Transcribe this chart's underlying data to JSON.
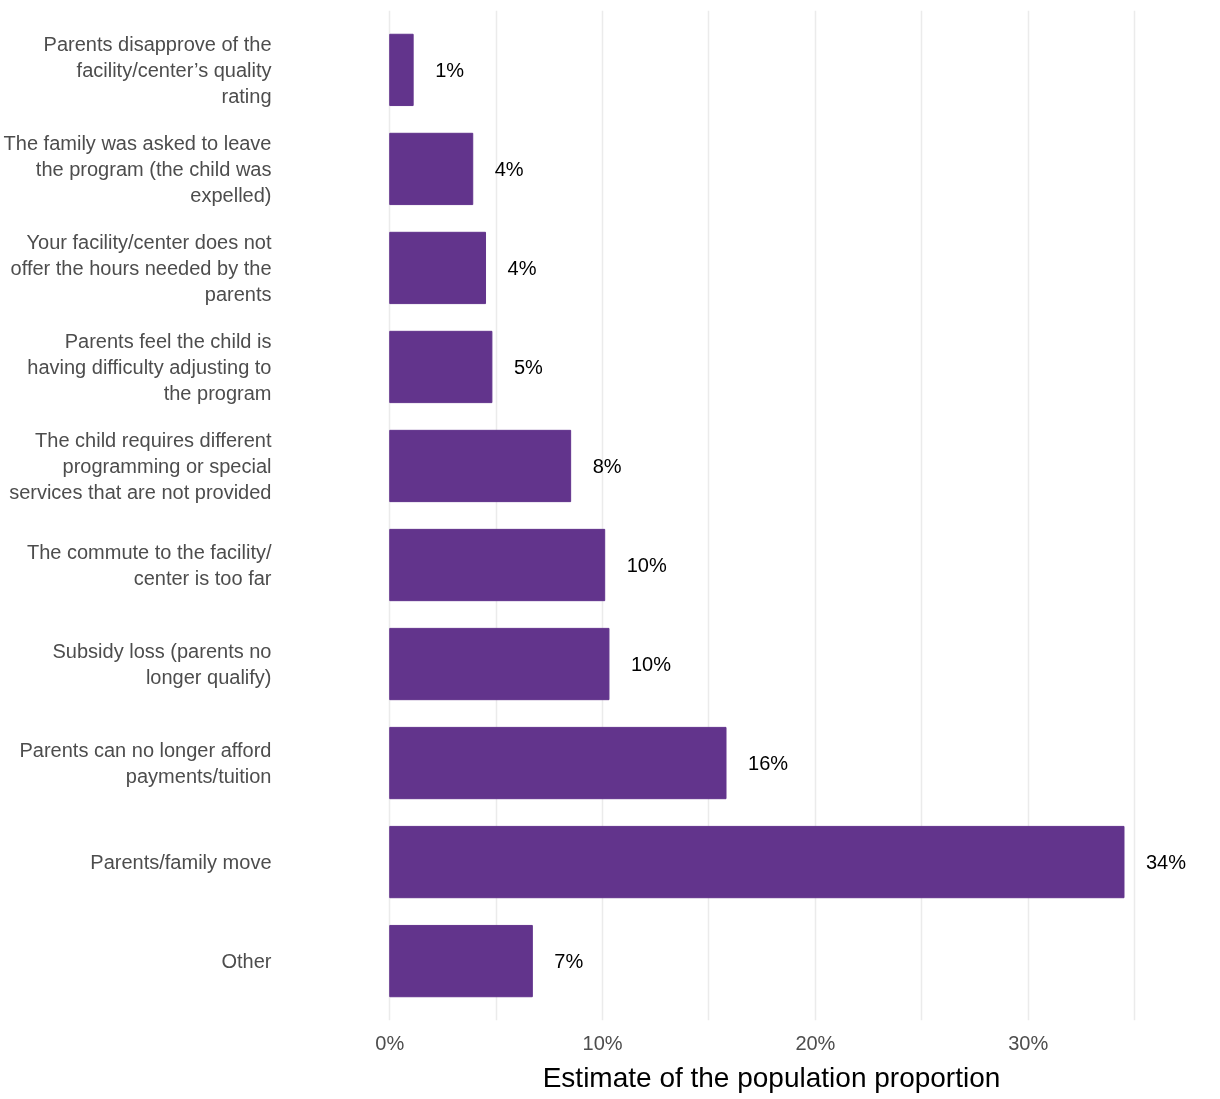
{
  "chart_data": {
    "type": "bar",
    "orientation": "horizontal",
    "xlabel": "Estimate of the population proportion",
    "categories": [
      "Parents disapprove of the facility/center’s quality rating",
      "The family was asked to leave the program (the child was expelled)",
      "Your facility/center does not offer the hours needed by the parents",
      "Parents feel the child is having difficulty adjusting to the program",
      "The child requires different programming or special services that are not provided",
      "The commute to the facility/ center is too far",
      "Subsidy loss (parents no longer qualify)",
      "Parents can no longer afford payments/tuition",
      "Parents/family move",
      "Other"
    ],
    "values": [
      1.1,
      3.9,
      4.5,
      4.8,
      8.5,
      10.1,
      10.3,
      15.8,
      34.5,
      6.7
    ],
    "value_labels": [
      "1%",
      "4%",
      "4%",
      "5%",
      "8%",
      "10%",
      "10%",
      "16%",
      "34%",
      "7%"
    ],
    "color": "#62348c",
    "xlim": [
      0,
      35
    ],
    "xticks": [
      {
        "value": 0,
        "label": "0%"
      },
      {
        "value": 5,
        "label": null
      },
      {
        "value": 10,
        "label": "10%"
      },
      {
        "value": 15,
        "label": null
      },
      {
        "value": 20,
        "label": "20%"
      },
      {
        "value": 25,
        "label": null
      },
      {
        "value": 30,
        "label": "30%"
      },
      {
        "value": 35,
        "label": null
      }
    ],
    "grid": "x"
  }
}
